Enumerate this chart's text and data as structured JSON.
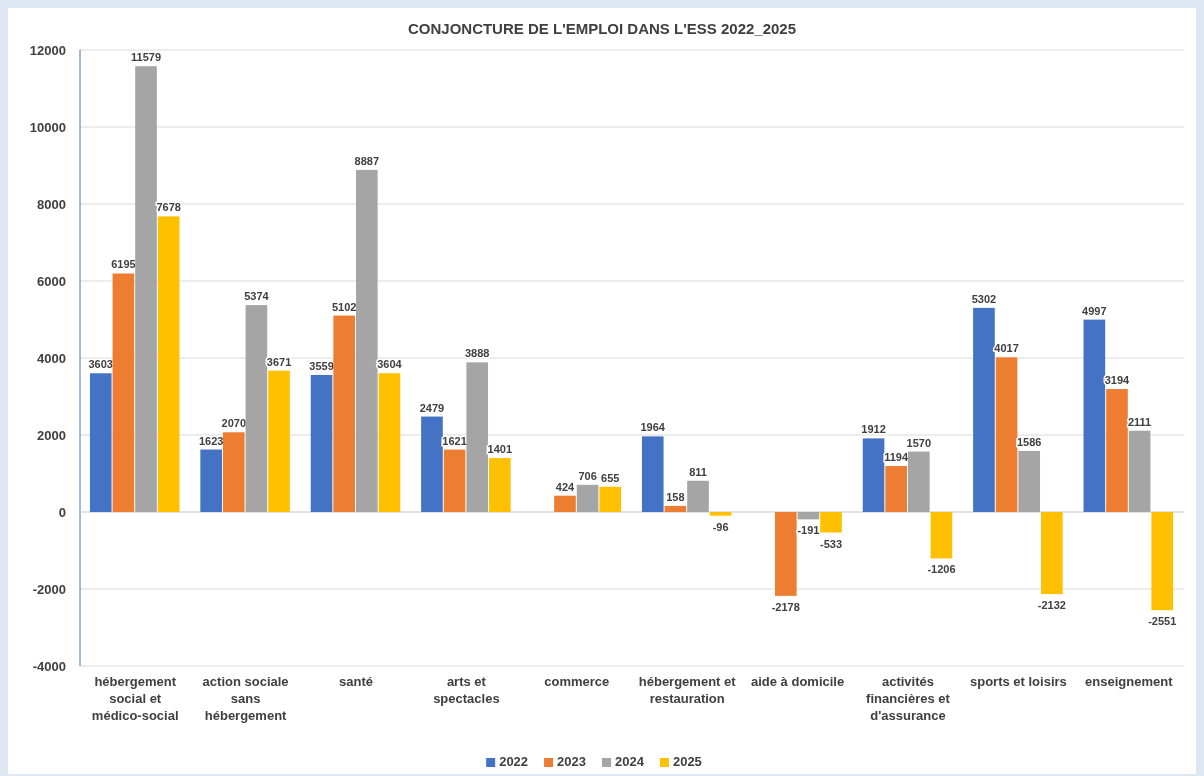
{
  "chart_data": {
    "type": "bar",
    "title": "CONJONCTURE DE L'EMPLOI DANS L'ESS 2022_2025",
    "categories": [
      "hébergement social et médico-social",
      "action sociale sans hébergement",
      "santé",
      "arts et spectacles",
      "commerce",
      "hébergement et restauration",
      "aide à domicile",
      "activités financières et d'assurance",
      "sports et loisirs",
      "enseignement"
    ],
    "series": [
      {
        "name": "2022",
        "color": "#4472c4",
        "values": [
          3603,
          1623,
          3559,
          2479,
          null,
          1964,
          null,
          1912,
          5302,
          4997
        ]
      },
      {
        "name": "2023",
        "color": "#ed7d31",
        "values": [
          6195,
          2070,
          5102,
          1621,
          424,
          158,
          -2178,
          1194,
          4017,
          3194
        ]
      },
      {
        "name": "2024",
        "color": "#a5a5a5",
        "values": [
          11579,
          5374,
          8887,
          3888,
          706,
          811,
          -191,
          1570,
          1586,
          2111
        ]
      },
      {
        "name": "2025",
        "color": "#ffc000",
        "values": [
          7678,
          3671,
          3604,
          1401,
          655,
          -96,
          -533,
          -1206,
          -2132,
          -2551
        ]
      }
    ],
    "ylim": [
      -4000,
      12000
    ],
    "yticks": [
      -4000,
      -2000,
      0,
      2000,
      4000,
      6000,
      8000,
      10000,
      12000
    ],
    "grid": "y",
    "legend": "bottom",
    "data_labels": true
  }
}
